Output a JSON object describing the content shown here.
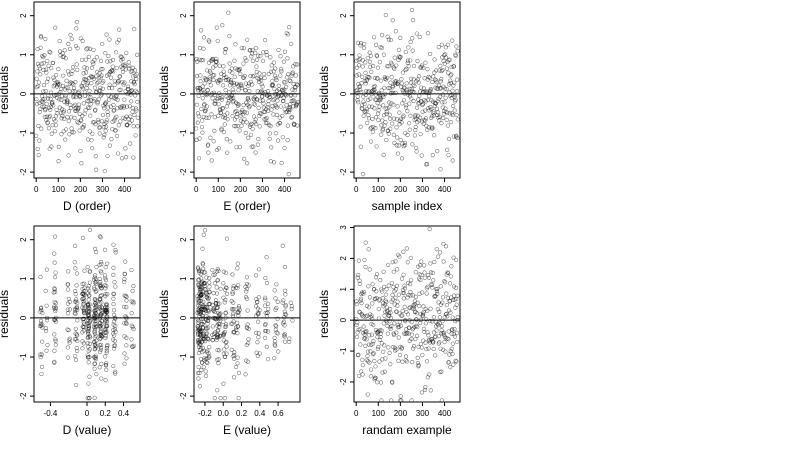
{
  "chart_data": [
    {
      "type": "scatter",
      "xlabel": "D (order)",
      "ylabel": "residuals",
      "xlim": [
        -10,
        470
      ],
      "ylim": [
        -2.15,
        2.35
      ],
      "xticks": [
        0,
        100,
        200,
        300,
        400
      ],
      "xtick_labels": [
        "0",
        "100",
        "200",
        "300",
        "400"
      ],
      "yticks": [
        -2,
        -1,
        0,
        1,
        2
      ],
      "ytick_labels": [
        "-2",
        "-1",
        "0",
        "1",
        "2"
      ],
      "hline": 0,
      "series": [
        {
          "kind": "gen",
          "seed": 101,
          "n": 460,
          "xmin": 0,
          "xmax": 460,
          "mode": "uniform",
          "sd": 0.72,
          "ymin": -2.05,
          "ymax": 2.25
        }
      ]
    },
    {
      "type": "scatter",
      "xlabel": "E (order)",
      "ylabel": "residuals",
      "xlim": [
        -10,
        470
      ],
      "ylim": [
        -2.15,
        2.35
      ],
      "xticks": [
        0,
        100,
        200,
        300,
        400
      ],
      "xtick_labels": [
        "0",
        "100",
        "200",
        "300",
        "400"
      ],
      "yticks": [
        -2,
        -1,
        0,
        1,
        2
      ],
      "ytick_labels": [
        "-2",
        "-1",
        "0",
        "1",
        "2"
      ],
      "hline": 0,
      "series": [
        {
          "kind": "gen",
          "seed": 202,
          "n": 460,
          "xmin": 0,
          "xmax": 460,
          "mode": "uniform",
          "sd": 0.72,
          "ymin": -2.05,
          "ymax": 2.25
        }
      ]
    },
    {
      "type": "scatter",
      "xlabel": "sample index",
      "ylabel": "residuals",
      "xlim": [
        -10,
        470
      ],
      "ylim": [
        -2.15,
        2.35
      ],
      "xticks": [
        0,
        100,
        200,
        300,
        400
      ],
      "xtick_labels": [
        "0",
        "100",
        "200",
        "300",
        "400"
      ],
      "yticks": [
        -2,
        -1,
        0,
        1,
        2
      ],
      "ytick_labels": [
        "-2",
        "-1",
        "0",
        "1",
        "2"
      ],
      "hline": 0,
      "series": [
        {
          "kind": "gen",
          "seed": 303,
          "n": 460,
          "xmin": 0,
          "xmax": 460,
          "mode": "uniform",
          "sd": 0.72,
          "ymin": -2.05,
          "ymax": 2.25
        }
      ]
    },
    {
      "type": "scatter",
      "xlabel": "D (value)",
      "ylabel": "residuals",
      "xlim": [
        -0.58,
        0.58
      ],
      "ylim": [
        -2.15,
        2.35
      ],
      "xticks": [
        -0.4,
        0,
        0.2,
        0.4
      ],
      "xtick_labels": [
        "-0.4",
        "0",
        "0.2",
        "0.4"
      ],
      "yticks": [
        -2,
        -1,
        0,
        1,
        2
      ],
      "ytick_labels": [
        "-2",
        "-1",
        "0",
        "1",
        "2"
      ],
      "hline": 0,
      "series": [
        {
          "kind": "gen",
          "seed": 404,
          "n": 460,
          "mode": "columns",
          "centers": [
            -0.5,
            -0.44,
            -0.35,
            -0.2,
            -0.12,
            -0.04,
            0.02,
            0.09,
            0.15,
            0.21,
            0.3,
            0.42,
            0.5
          ],
          "weights": [
            3,
            1,
            4,
            2,
            5,
            6,
            7,
            8,
            7,
            6,
            3,
            3,
            2
          ],
          "jitter": 0.014,
          "sd": 0.72,
          "ymin": -2.05,
          "ymax": 2.25
        }
      ]
    },
    {
      "type": "scatter",
      "xlabel": "E (value)",
      "ylabel": "residuals",
      "xlim": [
        -0.32,
        0.84
      ],
      "ylim": [
        -2.15,
        2.35
      ],
      "xticks": [
        -0.2,
        0,
        0.2,
        0.4,
        0.6
      ],
      "xtick_labels": [
        "-0.2",
        "0.0",
        "0.2",
        "0.4",
        "0.6"
      ],
      "yticks": [
        -2,
        -1,
        0,
        1,
        2
      ],
      "ytick_labels": [
        "-2",
        "-1",
        "0",
        "1",
        "2"
      ],
      "hline": 0,
      "series": [
        {
          "kind": "gen",
          "seed": 505,
          "n": 460,
          "mode": "columns",
          "centers": [
            -0.26,
            -0.22,
            -0.17,
            -0.1,
            -0.05,
            0.02,
            0.1,
            0.16,
            0.26,
            0.38,
            0.47,
            0.58,
            0.67,
            0.74
          ],
          "weights": [
            14,
            10,
            7,
            6,
            7,
            5,
            4,
            4,
            2,
            3,
            3,
            2,
            2,
            1
          ],
          "jitter": 0.022,
          "sd": 0.72,
          "ymin": -2.05,
          "ymax": 2.25
        }
      ]
    },
    {
      "type": "scatter",
      "xlabel": "randam example",
      "ylabel": "residuals",
      "xlim": [
        -10,
        470
      ],
      "ylim": [
        -2.65,
        3.05
      ],
      "xticks": [
        0,
        100,
        200,
        300,
        400
      ],
      "xtick_labels": [
        "0",
        "100",
        "200",
        "300",
        "400"
      ],
      "yticks": [
        -2,
        -1,
        0,
        1,
        2,
        3
      ],
      "ytick_labels": [
        "-2",
        "-1",
        "0",
        "1",
        "2",
        "3"
      ],
      "hline": 0,
      "series": [
        {
          "kind": "gen",
          "seed": 606,
          "n": 460,
          "xmin": 0,
          "xmax": 460,
          "mode": "uniform",
          "sd": 1.0,
          "ymin": -2.6,
          "ymax": 2.95
        }
      ]
    }
  ]
}
